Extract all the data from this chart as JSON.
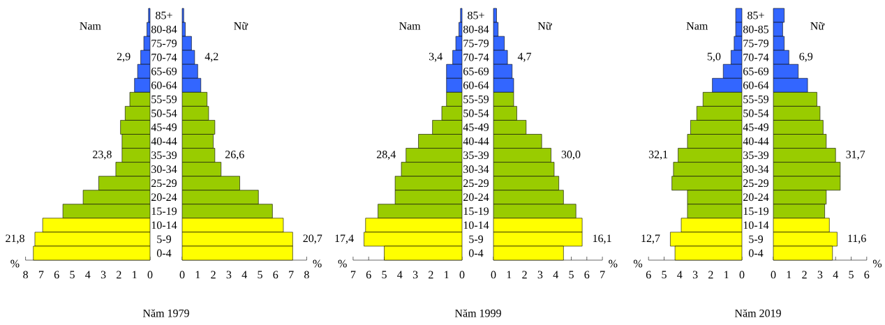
{
  "chart_data": [
    {
      "type": "bar",
      "orientation": "horizontal",
      "title": "Năm 1979",
      "xlabel": "%",
      "categories": [
        "85+",
        "80-84",
        "75-79",
        "70-74",
        "65-69",
        "60-64",
        "55-59",
        "50-54",
        "45-49",
        "40-44",
        "35-39",
        "30-34",
        "25-29",
        "20-24",
        "15-19",
        "10-14",
        "5-9",
        "0-4"
      ],
      "series": [
        {
          "name": "Nam",
          "values": [
            0.1,
            0.2,
            0.4,
            0.6,
            0.8,
            1.0,
            1.3,
            1.6,
            1.9,
            1.8,
            1.8,
            2.2,
            3.3,
            4.3,
            5.6,
            6.9,
            7.4,
            7.5
          ],
          "colors": [
            "#3366ff",
            "#3366ff",
            "#3366ff",
            "#3366ff",
            "#3366ff",
            "#3366ff",
            "#99cc00",
            "#99cc00",
            "#99cc00",
            "#99cc00",
            "#99cc00",
            "#99cc00",
            "#99cc00",
            "#99cc00",
            "#99cc00",
            "#ffff00",
            "#ffff00",
            "#ffff00"
          ]
        }
      ],
      "xlim": [
        8,
        0
      ],
      "xticks": [
        8,
        7,
        6,
        5,
        4,
        3,
        2,
        1,
        0
      ],
      "annotations": [
        "2,9",
        "23,8",
        "21,8"
      ]
    },
    {
      "type": "bar",
      "orientation": "horizontal",
      "xlabel": "%",
      "categories": [
        null,
        null,
        null,
        null,
        null,
        null,
        null,
        null,
        null,
        null,
        null,
        null,
        null,
        null,
        null,
        null,
        null,
        null
      ],
      "series": [
        {
          "name": "Nữ",
          "values": [
            0.1,
            0.2,
            0.6,
            0.8,
            1.0,
            1.2,
            1.6,
            1.7,
            2.1,
            2.0,
            2.1,
            2.5,
            3.7,
            4.9,
            5.8,
            6.5,
            7.1,
            7.1
          ],
          "colors": [
            "#3366ff",
            "#3366ff",
            "#3366ff",
            "#3366ff",
            "#3366ff",
            "#3366ff",
            "#99cc00",
            "#99cc00",
            "#99cc00",
            "#99cc00",
            "#99cc00",
            "#99cc00",
            "#99cc00",
            "#99cc00",
            "#99cc00",
            "#ffff00",
            "#ffff00",
            "#ffff00"
          ]
        }
      ],
      "xlim": [
        0,
        8
      ],
      "xticks": [
        0,
        1,
        2,
        3,
        4,
        5,
        6,
        7,
        8
      ],
      "annotations": [
        "4,2",
        "26,6",
        "20,7"
      ]
    },
    {
      "type": "bar",
      "orientation": "horizontal",
      "title": "Năm 1999",
      "xlabel": "%",
      "categories": [
        "85+",
        "80-84",
        "75-79",
        "70-74",
        "65-69",
        "60-64",
        "55-59",
        "50-54",
        "45-49",
        "40-44",
        "35-39",
        "30-34",
        "25-29",
        "20-24",
        "15-19",
        "10-14",
        "5-9",
        "0-4"
      ],
      "series": [
        {
          "name": "Nam",
          "values": [
            0.1,
            0.2,
            0.4,
            0.6,
            1.0,
            1.0,
            1.0,
            1.3,
            1.9,
            2.8,
            3.6,
            3.9,
            4.3,
            4.3,
            5.4,
            6.2,
            6.3,
            5.0
          ],
          "colors": [
            "#3366ff",
            "#3366ff",
            "#3366ff",
            "#3366ff",
            "#3366ff",
            "#3366ff",
            "#99cc00",
            "#99cc00",
            "#99cc00",
            "#99cc00",
            "#99cc00",
            "#99cc00",
            "#99cc00",
            "#99cc00",
            "#99cc00",
            "#ffff00",
            "#ffff00",
            "#ffff00"
          ]
        }
      ],
      "xlim": [
        7,
        0
      ],
      "xticks": [
        7,
        6,
        5,
        4,
        3,
        2,
        1,
        0
      ],
      "annotations": [
        "3,4",
        "28,4",
        "17,4"
      ]
    },
    {
      "type": "bar",
      "orientation": "horizontal",
      "xlabel": "%",
      "categories": [
        null,
        null,
        null,
        null,
        null,
        null,
        null,
        null,
        null,
        null,
        null,
        null,
        null,
        null,
        null,
        null,
        null,
        null
      ],
      "series": [
        {
          "name": "Nữ",
          "values": [
            0.2,
            0.3,
            0.7,
            0.9,
            1.2,
            1.3,
            1.3,
            1.5,
            2.1,
            3.1,
            3.7,
            3.9,
            4.2,
            4.5,
            5.3,
            5.7,
            5.7,
            4.5
          ],
          "colors": [
            "#3366ff",
            "#3366ff",
            "#3366ff",
            "#3366ff",
            "#3366ff",
            "#3366ff",
            "#99cc00",
            "#99cc00",
            "#99cc00",
            "#99cc00",
            "#99cc00",
            "#99cc00",
            "#99cc00",
            "#99cc00",
            "#99cc00",
            "#ffff00",
            "#ffff00",
            "#ffff00"
          ]
        }
      ],
      "xlim": [
        0,
        7
      ],
      "xticks": [
        0,
        1,
        2,
        3,
        4,
        5,
        6,
        7
      ],
      "annotations": [
        "4,7",
        "30,0",
        "16,1"
      ]
    },
    {
      "type": "bar",
      "orientation": "horizontal",
      "title": "Năm 2019",
      "xlabel": "%",
      "categories": [
        "85+",
        "80-85",
        "75-79",
        "70-74",
        "65-69",
        "60-64",
        "55-59",
        "50-54",
        "45-49",
        "40-44",
        "35-39",
        "30-34",
        "25-29",
        "20-24",
        "15-19",
        "10-14",
        "5-9",
        "0-4"
      ],
      "series": [
        {
          "name": "Nam",
          "values": [
            0.4,
            0.4,
            0.5,
            0.7,
            1.2,
            1.9,
            2.5,
            2.9,
            3.3,
            3.5,
            4.1,
            4.4,
            4.5,
            3.5,
            3.5,
            3.9,
            4.6,
            4.3
          ],
          "colors": [
            "#3366ff",
            "#3366ff",
            "#3366ff",
            "#3366ff",
            "#3366ff",
            "#3366ff",
            "#99cc00",
            "#99cc00",
            "#99cc00",
            "#99cc00",
            "#99cc00",
            "#99cc00",
            "#99cc00",
            "#99cc00",
            "#99cc00",
            "#ffff00",
            "#ffff00",
            "#ffff00"
          ]
        }
      ],
      "xlim": [
        6,
        0
      ],
      "xticks": [
        6,
        5,
        4,
        3,
        2,
        1,
        0
      ],
      "annotations": [
        "5,0",
        "32,1",
        "12,7"
      ]
    },
    {
      "type": "bar",
      "orientation": "horizontal",
      "xlabel": "%",
      "categories": [
        null,
        null,
        null,
        null,
        null,
        null,
        null,
        null,
        null,
        null,
        null,
        null,
        null,
        null,
        null,
        null,
        null,
        null
      ],
      "series": [
        {
          "name": "Nữ",
          "values": [
            0.7,
            0.6,
            0.7,
            1.0,
            1.6,
            2.2,
            2.8,
            3.0,
            3.2,
            3.4,
            4.0,
            4.3,
            4.3,
            3.4,
            3.3,
            3.6,
            4.1,
            3.8
          ],
          "colors": [
            "#3366ff",
            "#3366ff",
            "#3366ff",
            "#3366ff",
            "#3366ff",
            "#3366ff",
            "#99cc00",
            "#99cc00",
            "#99cc00",
            "#99cc00",
            "#99cc00",
            "#99cc00",
            "#99cc00",
            "#99cc00",
            "#99cc00",
            "#ffff00",
            "#ffff00",
            "#ffff00"
          ]
        }
      ],
      "xlim": [
        0,
        6
      ],
      "xticks": [
        0,
        1,
        2,
        3,
        4,
        5,
        6
      ],
      "annotations": [
        "6,9",
        "31,7",
        "11,6"
      ]
    }
  ]
}
